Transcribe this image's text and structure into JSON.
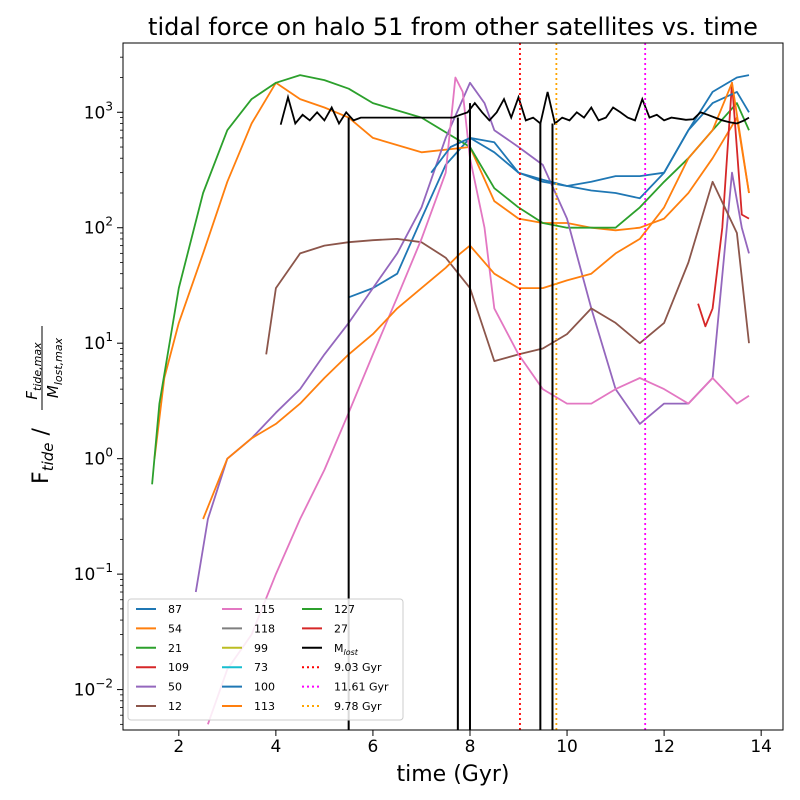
{
  "chart_data": {
    "type": "line",
    "title": "tidal force on halo 51 from other satellites vs. time",
    "xlabel": "time (Gyr)",
    "ylabel": {
      "main": "F",
      "main_sub": "tide",
      "sep": " / ",
      "num": "F",
      "num_sub": "tide,max",
      "den": "M",
      "den_sub": "lost,max"
    },
    "xlim": [
      0.85,
      14.45
    ],
    "ylim_log10": [
      -2.35,
      3.6
    ],
    "yscale": "log",
    "xticks": [
      2,
      4,
      6,
      8,
      10,
      12,
      14
    ],
    "xtick_labels": [
      "2",
      "4",
      "6",
      "8",
      "10",
      "12",
      "14"
    ],
    "yticks_exp": [
      -2,
      -1,
      0,
      1,
      2,
      3
    ],
    "ytick_base": "10",
    "legend_position": "lower-left",
    "series": [
      {
        "name": "87",
        "color": "#1f77b4",
        "x": [
          5.5,
          6,
          6.5,
          7,
          7.5,
          8,
          8.5,
          9,
          9.5,
          10,
          10.5,
          11,
          11.5,
          12,
          12.5,
          13,
          13.5,
          13.75
        ],
        "y": [
          25,
          30,
          40,
          120,
          350,
          600,
          450,
          300,
          250,
          230,
          210,
          200,
          180,
          300,
          700,
          1500,
          2000,
          2100
        ]
      },
      {
        "name": "54",
        "color": "#ff7f0e",
        "x": [
          1.5,
          1.7,
          2.0,
          2.5,
          3.0,
          3.5,
          4.0,
          4.5,
          5.0,
          5.5,
          6.0,
          7.0,
          8.0,
          8.5,
          9.0,
          9.5,
          10.0,
          10.5,
          11.0,
          11.5,
          12.0,
          12.5,
          13.0,
          13.5,
          13.75
        ],
        "y": [
          1,
          5,
          15,
          60,
          250,
          800,
          1800,
          1300,
          1100,
          900,
          600,
          450,
          500,
          170,
          120,
          110,
          110,
          100,
          95,
          100,
          120,
          200,
          400,
          900,
          200
        ]
      },
      {
        "name": "21",
        "color": "#2ca02c",
        "x": [
          1.45,
          1.6,
          2.0,
          2.5,
          3.0,
          3.5,
          4.0,
          4.5,
          5.0,
          5.5,
          6.0,
          7.0,
          8.0,
          8.5,
          9.0,
          9.5,
          10.0,
          10.5,
          11.0,
          11.5,
          12.0,
          12.5,
          13.0,
          13.5,
          13.75
        ],
        "y": [
          0.6,
          3,
          30,
          200,
          700,
          1300,
          1800,
          2100,
          1900,
          1600,
          1200,
          900,
          500,
          220,
          150,
          110,
          100,
          100,
          100,
          150,
          250,
          400,
          700,
          1200,
          700
        ]
      },
      {
        "name": "109",
        "color": "#d62728",
        "x": [
          12.7,
          12.85,
          13.0,
          13.2,
          13.4,
          13.6,
          13.75
        ],
        "y": [
          22,
          14,
          20,
          100,
          1800,
          130,
          120
        ]
      },
      {
        "name": "50",
        "color": "#9467bd",
        "x": [
          2.35,
          2.6,
          3.0,
          3.5,
          4.0,
          4.5,
          5.0,
          5.5,
          6.0,
          6.5,
          7.0,
          7.5,
          8.0,
          8.3,
          8.5,
          9.0,
          9.5,
          10.0,
          10.5,
          11.0,
          11.5,
          12.0,
          12.5,
          13.0,
          13.4,
          13.6,
          13.75
        ],
        "y": [
          0.07,
          0.3,
          1,
          1.5,
          2.5,
          4,
          8,
          15,
          30,
          60,
          150,
          600,
          1800,
          1200,
          700,
          500,
          350,
          120,
          20,
          4,
          2,
          3,
          3,
          5,
          300,
          100,
          60
        ]
      },
      {
        "name": "12",
        "color": "#8c564b",
        "x": [
          3.8,
          4.0,
          4.5,
          5.0,
          5.5,
          6.0,
          6.5,
          7.0,
          7.5,
          8.0,
          8.5,
          9.0,
          9.5,
          10.0,
          10.5,
          11.0,
          11.5,
          12.0,
          12.5,
          13.0,
          13.5,
          13.75
        ],
        "y": [
          8,
          30,
          60,
          70,
          75,
          78,
          80,
          75,
          55,
          30,
          7,
          8,
          9,
          12,
          20,
          15,
          10,
          15,
          50,
          250,
          90,
          10
        ]
      },
      {
        "name": "115",
        "color": "#e377c2",
        "x": [
          2.6,
          3.0,
          3.5,
          4.0,
          4.5,
          5.0,
          5.5,
          6.0,
          6.5,
          7.0,
          7.5,
          7.7,
          7.85,
          8.0,
          8.3,
          8.5,
          9.0,
          9.5,
          10.0,
          10.5,
          11.0,
          11.5,
          12.0,
          12.5,
          13.0,
          13.5,
          13.75
        ],
        "y": [
          0.005,
          0.015,
          0.03,
          0.1,
          0.3,
          0.8,
          2.5,
          8,
          25,
          80,
          300,
          2000,
          1500,
          400,
          100,
          20,
          8,
          4,
          3,
          3,
          4,
          5,
          4,
          3,
          5,
          3,
          3.5
        ]
      },
      {
        "name": "118",
        "color": "#7f7f7f",
        "x": [],
        "y": []
      },
      {
        "name": "99",
        "color": "#bcbd22",
        "x": [],
        "y": []
      },
      {
        "name": "73",
        "color": "#17becf",
        "x": [],
        "y": []
      },
      {
        "name": "100",
        "color": "#1f77b4",
        "x": [
          7.2,
          7.6,
          8.0,
          8.5,
          9.0,
          9.5,
          10.0,
          10.5,
          11.0,
          11.5,
          12.0,
          12.5,
          13.0,
          13.5,
          13.75
        ],
        "y": [
          300,
          500,
          600,
          550,
          300,
          260,
          230,
          250,
          280,
          280,
          300,
          700,
          1200,
          1500,
          1000
        ]
      },
      {
        "name": "113",
        "color": "#ff7f0e",
        "x": [
          2.5,
          3.0,
          3.5,
          4.0,
          4.5,
          5.0,
          5.5,
          6.0,
          6.5,
          7.0,
          7.5,
          7.8,
          8.0,
          8.5,
          9.0,
          9.5,
          10.0,
          10.5,
          11.0,
          11.5,
          12.0,
          12.5,
          13.0,
          13.4,
          13.75
        ],
        "y": [
          0.3,
          1,
          1.5,
          2,
          3,
          5,
          8,
          12,
          20,
          30,
          45,
          60,
          70,
          40,
          30,
          30,
          35,
          40,
          60,
          80,
          150,
          400,
          700,
          1800,
          200
        ]
      },
      {
        "name": "127",
        "color": "#2ca02c",
        "x": [],
        "y": []
      },
      {
        "name": "27",
        "color": "#d62728",
        "x": [],
        "y": []
      }
    ],
    "m_lost": {
      "name": "M",
      "name_sub": "lost",
      "color": "#000000",
      "x": [
        4.1,
        4.25,
        4.4,
        4.55,
        4.7,
        4.85,
        5.0,
        5.15,
        5.3,
        5.45,
        5.6,
        5.75,
        7.65,
        7.8,
        7.95,
        8.1,
        8.25,
        8.4,
        8.55,
        8.7,
        8.85,
        9.0,
        9.15,
        9.3,
        9.45,
        9.6,
        9.75,
        9.9,
        10.05,
        10.2,
        10.35,
        10.5,
        10.65,
        10.8,
        10.95,
        11.1,
        11.25,
        11.4,
        11.55,
        11.7,
        11.85,
        12.0,
        12.15,
        12.3,
        12.45,
        12.6,
        12.75,
        12.9,
        13.05,
        13.2,
        13.35,
        13.5,
        13.65,
        13.75
      ],
      "y": [
        780,
        1350,
        800,
        950,
        850,
        1000,
        850,
        1100,
        800,
        1000,
        850,
        900,
        900,
        950,
        1000,
        1200,
        1000,
        850,
        1000,
        1300,
        900,
        1350,
        850,
        900,
        800,
        1500,
        800,
        900,
        850,
        1000,
        900,
        1100,
        850,
        900,
        1100,
        1000,
        900,
        850,
        1300,
        900,
        950,
        850,
        900,
        880,
        860,
        870,
        1000,
        950,
        900,
        850,
        820,
        800,
        850,
        900
      ],
      "spikes": [
        {
          "x": 5.5,
          "from": 900
        },
        {
          "x": 7.75,
          "from": 900
        },
        {
          "x": 8.0,
          "from": 1200
        },
        {
          "x": 9.45,
          "from": 800
        },
        {
          "x": 9.7,
          "from": 800
        }
      ]
    },
    "vlines": [
      {
        "label": "9.03 Gyr",
        "x": 9.03,
        "color": "#ff0000"
      },
      {
        "label": "11.61 Gyr",
        "x": 11.61,
        "color": "#ff00ff"
      },
      {
        "label": "9.78 Gyr",
        "x": 9.78,
        "color": "#ffa500"
      }
    ]
  }
}
